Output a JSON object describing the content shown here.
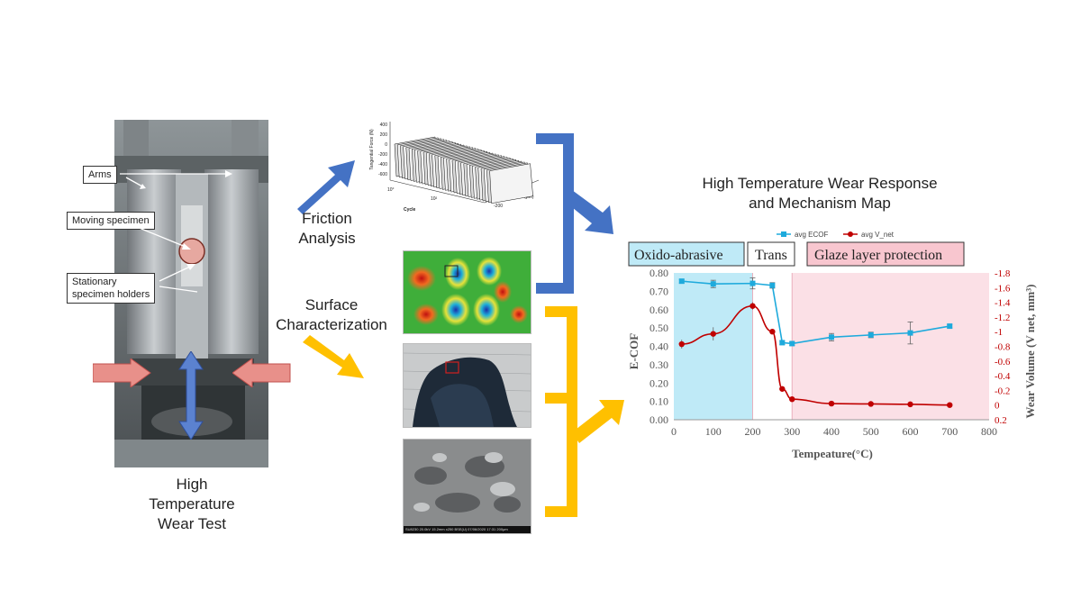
{
  "test_setup": {
    "caption": [
      "High",
      "Temperature",
      "Wear Test"
    ],
    "callouts": {
      "arms": "Arms",
      "moving_specimen": "Moving specimen",
      "stationary_holders": [
        "Stationary",
        "specimen holders"
      ]
    }
  },
  "branches": {
    "friction": [
      "Friction",
      "Analysis"
    ],
    "surface": [
      "Surface",
      "Characterization"
    ]
  },
  "friction_plot": {
    "zlabel": "Tangential Force (N)",
    "z_ticks": [
      "400",
      "200",
      "0",
      "-200",
      "-400",
      "-600"
    ],
    "cycle_label": "Cycle",
    "cycle_ticks": [
      "10°",
      "10²"
    ],
    "delta_label": "δ (μm)",
    "delta_ticks": [
      "200",
      "0",
      "-200"
    ]
  },
  "sem_caption": "SU8230 20.0kV 15.2mm x250 BSE(U) 07/06/2020 17:31   200μm",
  "map_title": [
    "High Temperature Wear Response",
    "and Mechanism Map"
  ],
  "regions": {
    "oxido": "Oxido-abrasive",
    "trans": "Trans",
    "glaze": "Glaze layer protection"
  },
  "colors": {
    "blue_arrow": "#4472c4",
    "yellow_arrow": "#ffc000",
    "ecof": "#1eaadc",
    "vnet": "#c00000",
    "oxido_bg": "#bfeaf7",
    "glaze_bg": "#fbe0e6"
  },
  "chart_data": {
    "type": "line",
    "xlabel": "Tempeature(°C)",
    "ylabel": "E-COF",
    "y2label": "Wear Volume (V net, mm³)",
    "xlim": [
      0,
      800
    ],
    "ylim": [
      0,
      0.8
    ],
    "y2lim": [
      0.2,
      -1.8
    ],
    "y2_inverted": true,
    "x_ticks": [
      "0",
      "100",
      "200",
      "300",
      "400",
      "500",
      "600",
      "700",
      "800"
    ],
    "y_ticks": [
      "0.00",
      "0.10",
      "0.20",
      "0.30",
      "0.40",
      "0.50",
      "0.60",
      "0.70",
      "0.80"
    ],
    "y2_ticks": [
      "0.2",
      "0",
      "-0.2",
      "-0.4",
      "-0.6",
      "-0.8",
      "-1",
      "-1.2",
      "-1.4",
      "-1.6",
      "-1.8"
    ],
    "legend_position": "top",
    "series": [
      {
        "name": "avg ECOF",
        "axis": "left",
        "x": [
          20,
          100,
          200,
          250,
          275,
          300,
          400,
          500,
          600,
          700
        ],
        "y": [
          0.755,
          0.74,
          0.743,
          0.732,
          0.42,
          0.415,
          0.45,
          0.462,
          0.473,
          0.51
        ],
        "err": [
          0.01,
          0.02,
          0.03,
          0.015,
          0.01,
          0.01,
          0.02,
          0.015,
          0.06,
          0.01
        ]
      },
      {
        "name": "avg V_net",
        "axis": "right",
        "x": [
          20,
          100,
          200,
          250,
          275,
          300,
          400,
          500,
          600,
          700
        ],
        "y": [
          -0.83,
          -0.97,
          -1.35,
          -1.0,
          -0.22,
          -0.08,
          -0.02,
          -0.015,
          -0.01,
          0.0
        ],
        "err": [
          0.06,
          0.09,
          0.05,
          0.0,
          0.0,
          0.0,
          0.0,
          0.0,
          0.0,
          0.0
        ]
      }
    ]
  }
}
